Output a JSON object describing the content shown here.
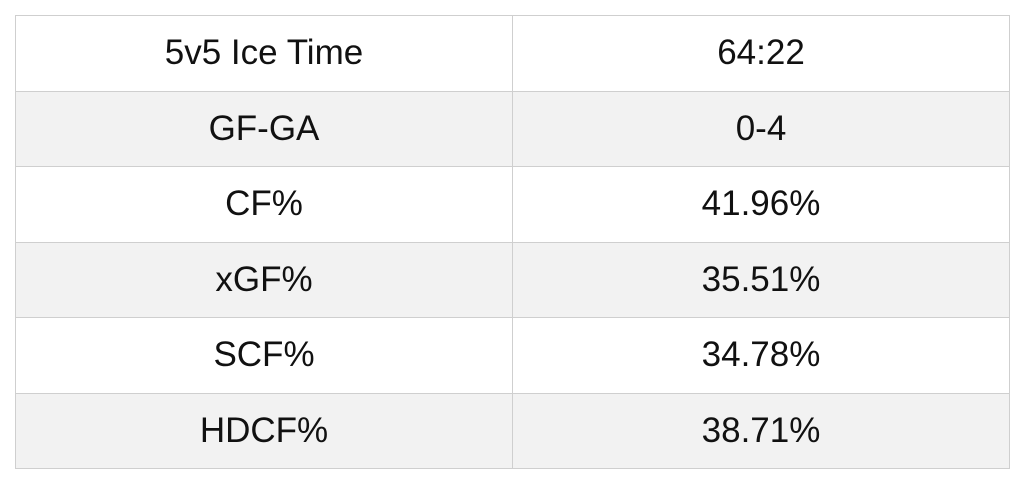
{
  "table": {
    "rows": [
      [
        "5v5 Ice Time",
        "64:22"
      ],
      [
        "GF-GA",
        "0-4"
      ],
      [
        "CF%",
        "41.96%"
      ],
      [
        "xGF%",
        "35.51%"
      ],
      [
        "SCF%",
        "34.78%"
      ],
      [
        "HDCF%",
        "38.71%"
      ]
    ]
  }
}
